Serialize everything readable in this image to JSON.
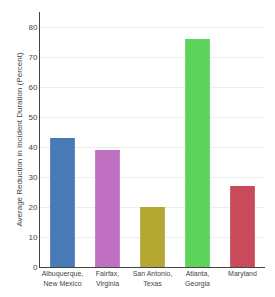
{
  "chart_data": {
    "type": "bar",
    "categories": [
      "Albuquerque,\nNew Mexico",
      "Fairfax,\nVirginia",
      "San Antonio,\nTexas",
      "Atlanta,\nGeorgia",
      "Maryland"
    ],
    "values": [
      43,
      39,
      20,
      76,
      27
    ],
    "colors": [
      "#4a7ab5",
      "#c070c0",
      "#b5a832",
      "#5cd45c",
      "#c94a5a"
    ],
    "ylabel": "Average Reduction in Incident Duration (Percent)",
    "ylim": [
      0,
      85
    ],
    "yticks": [
      0,
      10,
      20,
      30,
      40,
      50,
      60,
      70,
      80
    ],
    "grid": true
  }
}
